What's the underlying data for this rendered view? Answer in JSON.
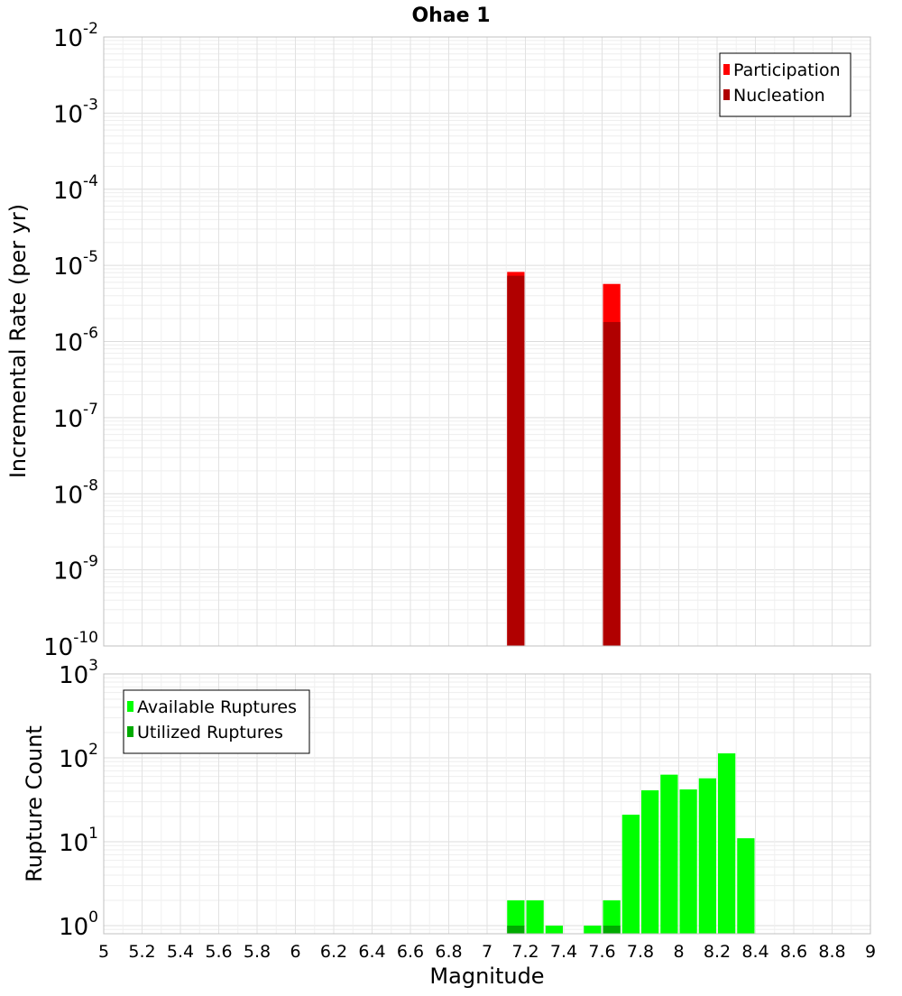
{
  "chart_data": [
    {
      "type": "bar",
      "title": "Ohae 1",
      "xlabel": "Magnitude",
      "ylabel": "Incremental Rate (per yr)",
      "yscale": "log",
      "ylim": [
        1e-10,
        0.01
      ],
      "xlim": [
        5,
        9
      ],
      "y_ticks": [
        {
          "base": "10",
          "exp": "-2"
        },
        {
          "base": "10",
          "exp": "-3"
        },
        {
          "base": "10",
          "exp": "-4"
        },
        {
          "base": "10",
          "exp": "-5"
        },
        {
          "base": "10",
          "exp": "-6"
        },
        {
          "base": "10",
          "exp": "-7"
        },
        {
          "base": "10",
          "exp": "-8"
        },
        {
          "base": "10",
          "exp": "-9"
        },
        {
          "base": "10",
          "exp": "-10"
        }
      ],
      "legend_position": "top-right",
      "grid": true,
      "bar_width": 0.1,
      "series": [
        {
          "name": "Participation",
          "color": "#ff0000",
          "x": [
            7.15,
            7.65
          ],
          "values": [
            8.2e-06,
            5.7e-06
          ]
        },
        {
          "name": "Nucleation",
          "color": "#b00000",
          "x": [
            7.15,
            7.65
          ],
          "values": [
            7.3e-06,
            1.8e-06
          ]
        }
      ]
    },
    {
      "type": "bar",
      "xlabel": "Magnitude",
      "ylabel": "Rupture Count",
      "yscale": "log",
      "ylim": [
        0.8,
        1000
      ],
      "xlim": [
        5,
        9
      ],
      "x_ticks": [
        "5",
        "5.2",
        "5.4",
        "5.6",
        "5.8",
        "6",
        "6.2",
        "6.4",
        "6.6",
        "6.8",
        "7",
        "7.2",
        "7.4",
        "7.6",
        "7.8",
        "8",
        "8.2",
        "8.4",
        "8.6",
        "8.8",
        "9"
      ],
      "y_ticks": [
        {
          "base": "10",
          "exp": "3"
        },
        {
          "base": "10",
          "exp": "2"
        },
        {
          "base": "10",
          "exp": "1"
        },
        {
          "base": "10",
          "exp": "0"
        }
      ],
      "legend_position": "top-left",
      "grid": true,
      "bar_width": 0.1,
      "series": [
        {
          "name": "Available Ruptures",
          "color": "#00ff00",
          "x": [
            7.15,
            7.25,
            7.35,
            7.55,
            7.65,
            7.75,
            7.85,
            7.95,
            8.05,
            8.15,
            8.25,
            8.35
          ],
          "values": [
            2,
            2,
            1,
            1,
            2,
            21,
            41,
            63,
            42,
            57,
            113,
            11
          ]
        },
        {
          "name": "Utilized Ruptures",
          "color": "#00aa00",
          "x": [
            7.15,
            7.65
          ],
          "values": [
            1,
            1
          ]
        }
      ]
    }
  ]
}
